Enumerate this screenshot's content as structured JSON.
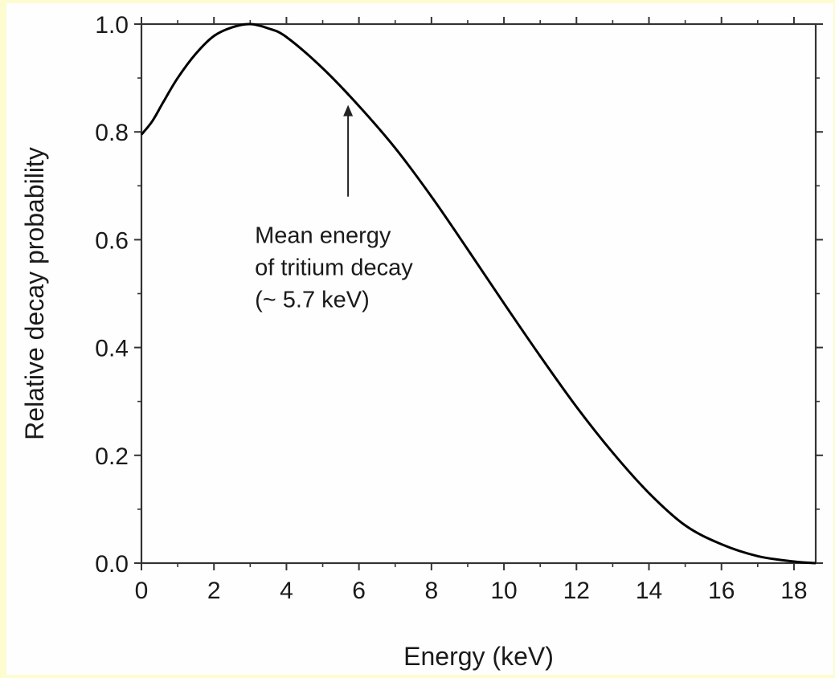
{
  "chart_data": {
    "type": "line",
    "title": "",
    "xlabel": "Energy (keV)",
    "ylabel": "Relative decay probability",
    "xlim": [
      0,
      18.6
    ],
    "ylim": [
      0,
      1.0
    ],
    "xticks": [
      0,
      2,
      4,
      6,
      8,
      10,
      12,
      14,
      16,
      18
    ],
    "yticks": [
      0.0,
      0.2,
      0.4,
      0.6,
      0.8,
      1.0
    ],
    "xtick_labels": [
      "0",
      "2",
      "4",
      "6",
      "8",
      "10",
      "12",
      "14",
      "16",
      "18"
    ],
    "ytick_labels": [
      "0.0",
      "0.2",
      "0.4",
      "0.6",
      "0.8",
      "1.0"
    ],
    "grid": false,
    "colors": {
      "line": "#000000",
      "axes": "#333333",
      "background": "#fdfbd0"
    },
    "series": [
      {
        "x": [
          0,
          0.3,
          0.6,
          1.0,
          1.5,
          2.0,
          2.5,
          3.0,
          3.5,
          4.0,
          5.0,
          6.0,
          7.0,
          8.0,
          9.0,
          10.0,
          11.0,
          12.0,
          13.0,
          14.0,
          15.0,
          16.0,
          17.0,
          18.0,
          18.6
        ],
        "y": [
          0.795,
          0.82,
          0.855,
          0.9,
          0.945,
          0.978,
          0.994,
          1.0,
          0.992,
          0.976,
          0.918,
          0.848,
          0.77,
          0.68,
          0.582,
          0.482,
          0.384,
          0.29,
          0.205,
          0.13,
          0.07,
          0.035,
          0.013,
          0.003,
          0.0
        ]
      }
    ],
    "annotations": [
      {
        "lines": [
          "Mean energy",
          "of tritium decay",
          "(~ 5.7 keV)"
        ],
        "arrow_x": 5.7,
        "arrow_y_from": 0.68,
        "arrow_y_to": 0.85
      }
    ]
  }
}
